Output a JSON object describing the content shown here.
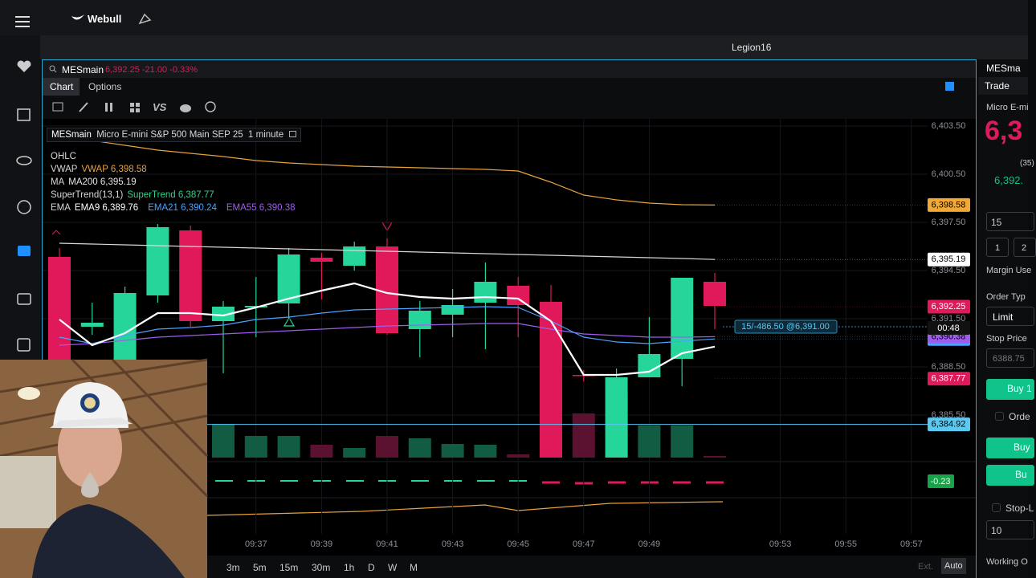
{
  "app": {
    "brand": "Webull",
    "window_title": "Legion16"
  },
  "chart_header": {
    "symbol": "MESmain",
    "price": "6,392.25",
    "change": "-21.00",
    "change_pct": "-0.33%"
  },
  "tabs": [
    "Chart",
    "Options"
  ],
  "legend": {
    "symbol": "MESmain",
    "name": "Micro E-mini S&P 500 Main SEP 25",
    "interval": "1 minute",
    "ohlc": "OHLC",
    "rows": [
      {
        "group": "VWAP",
        "items": [
          {
            "text": "VWAP 6,398.58",
            "color": "#e8a33c"
          }
        ]
      },
      {
        "group": "MA",
        "items": [
          {
            "text": "MA200 6,395.19",
            "color": "#e6e6e6"
          }
        ]
      },
      {
        "group": "SuperTrend(13,1)",
        "items": [
          {
            "text": "SuperTrend 6,387.77",
            "color": "#2bd48a"
          }
        ]
      },
      {
        "group": "EMA",
        "items": [
          {
            "text": "EMA9 6,389.76",
            "color": "#ffffff"
          },
          {
            "text": "EMA21 6,390.24",
            "color": "#4aa3ff"
          },
          {
            "text": "EMA55 6,390.38",
            "color": "#a05cf0"
          }
        ]
      }
    ]
  },
  "chart": {
    "ylim": [
      6378.1,
      6403.95
    ],
    "yticks": [
      {
        "value": 6403.5,
        "label": "6,403.50"
      },
      {
        "value": 6400.5,
        "label": "6,400.50"
      },
      {
        "value": 6397.5,
        "label": "6,397.50"
      },
      {
        "value": 6394.5,
        "label": "6,394.50"
      },
      {
        "value": 6391.5,
        "label": "6,391.50"
      },
      {
        "value": 6388.5,
        "label": "6,388.50"
      },
      {
        "value": 6385.5,
        "label": "6,385.50"
      }
    ],
    "xticks": [
      "09:37",
      "09:39",
      "09:41",
      "09:43",
      "09:45",
      "09:47",
      "09:49",
      "09:53",
      "09:55",
      "09:57"
    ],
    "up_color": "#26d59a",
    "down_color": "#e0195a",
    "candles": [
      {
        "open": 6395.35,
        "high": 6395.9,
        "low": 6388.5,
        "close": 6388.85,
        "volume": 300
      },
      {
        "open": 6391.0,
        "high": 6392.5,
        "low": 6390.5,
        "close": 6391.25,
        "volume": 200
      },
      {
        "open": 6388.9,
        "high": 6393.5,
        "low": 6388.5,
        "close": 6393.1,
        "volume": 350
      },
      {
        "open": 6392.95,
        "high": 6397.4,
        "low": 6392.5,
        "close": 6397.2,
        "volume": 250
      },
      {
        "open": 6397.0,
        "high": 6397.3,
        "low": 6391.0,
        "close": 6391.35,
        "volume": 300
      },
      {
        "open": 6391.35,
        "high": 6392.6,
        "low": 6388.1,
        "close": 6392.25,
        "volume": 420
      },
      {
        "open": 6392.2,
        "high": 6394.1,
        "low": 6390.35,
        "close": 6392.3,
        "volume": 270
      },
      {
        "open": 6392.45,
        "high": 6395.9,
        "low": 6391.5,
        "close": 6395.5,
        "volume": 270
      },
      {
        "open": 6395.3,
        "high": 6395.6,
        "low": 6392.7,
        "close": 6395.05,
        "volume": 160
      },
      {
        "open": 6394.8,
        "high": 6396.3,
        "low": 6394.5,
        "close": 6396.0,
        "volume": 120
      },
      {
        "open": 6396.0,
        "high": 6396.5,
        "low": 6390.5,
        "close": 6390.6,
        "volume": 270
      },
      {
        "open": 6390.85,
        "high": 6392.6,
        "low": 6389.1,
        "close": 6392.0,
        "volume": 240
      },
      {
        "open": 6391.75,
        "high": 6393.35,
        "low": 6390.35,
        "close": 6392.35,
        "volume": 170
      },
      {
        "open": 6392.5,
        "high": 6395.0,
        "low": 6389.6,
        "close": 6393.8,
        "volume": 160
      },
      {
        "open": 6393.55,
        "high": 6394.1,
        "low": 6390.35,
        "close": 6392.35,
        "volume": 40
      },
      {
        "open": 6392.55,
        "high": 6393.6,
        "low": 6382.85,
        "close": 6382.85,
        "volume": 900
      },
      {
        "open": 6388.0,
        "high": 6388.3,
        "low": 6387.6,
        "close": 6387.95,
        "volume": 550
      },
      {
        "open": 6382.85,
        "high": 6388.4,
        "low": 6382.85,
        "close": 6387.85,
        "volume": 800
      },
      {
        "open": 6387.85,
        "high": 6391.6,
        "low": 6387.85,
        "close": 6389.3,
        "volume": 400
      },
      {
        "open": 6389.0,
        "high": 6394.05,
        "low": 6387.3,
        "close": 6394.05,
        "volume": 400
      },
      {
        "open": 6393.8,
        "high": 6394.35,
        "low": 6390.85,
        "close": 6392.3,
        "volume": 20
      }
    ],
    "lines": [
      {
        "name": "VWAP",
        "color": "#e8a33c",
        "width": 1.2,
        "values": [
          6402.85,
          6402.6,
          6402.3,
          6402.0,
          6401.8,
          6401.6,
          6401.35,
          6401.2,
          6401.1,
          6401.0,
          6400.95,
          6400.9,
          6400.85,
          6400.8,
          6400.7,
          6400.0,
          6399.2,
          6398.9,
          6398.7,
          6398.6,
          6398.58
        ]
      },
      {
        "name": "MA200",
        "color": "#d8d8d8",
        "width": 1.2,
        "values": [
          6396.2,
          6396.15,
          6396.1,
          6396.05,
          6396.0,
          6395.95,
          6395.9,
          6395.85,
          6395.8,
          6395.75,
          6395.7,
          6395.65,
          6395.6,
          6395.55,
          6395.5,
          6395.45,
          6395.4,
          6395.35,
          6395.3,
          6395.25,
          6395.19
        ]
      },
      {
        "name": "EMA55",
        "color": "#a05cf0",
        "width": 1.2,
        "values": [
          6389.85,
          6389.95,
          6390.15,
          6390.35,
          6390.45,
          6390.55,
          6390.65,
          6390.75,
          6390.85,
          6390.95,
          6391.05,
          6391.1,
          6391.15,
          6391.2,
          6391.2,
          6390.85,
          6390.55,
          6390.45,
          6390.35,
          6390.35,
          6390.38
        ]
      },
      {
        "name": "EMA21",
        "color": "#4aa3ff",
        "width": 1.2,
        "values": [
          6390.35,
          6389.95,
          6390.45,
          6390.85,
          6390.95,
          6391.1,
          6391.45,
          6391.6,
          6391.85,
          6392.05,
          6392.1,
          6392.15,
          6392.2,
          6392.25,
          6392.2,
          6391.35,
          6390.35,
          6390.05,
          6389.95,
          6390.1,
          6390.24
        ]
      },
      {
        "name": "EMA9",
        "color": "#ffffff",
        "width": 2.2,
        "values": [
          6391.45,
          6389.85,
          6390.6,
          6391.85,
          6391.85,
          6391.7,
          6392.2,
          6392.75,
          6393.25,
          6393.7,
          6393.1,
          6392.85,
          6392.75,
          6392.85,
          6392.75,
          6391.35,
          6388.0,
          6388.0,
          6388.2,
          6389.35,
          6389.76
        ]
      }
    ],
    "price_tags": [
      {
        "label": "6,398.58",
        "value": 6398.58,
        "color": "#f0a935",
        "text_color": "#000000"
      },
      {
        "label": "6,395.19",
        "value": 6395.19,
        "color": "#ffffff",
        "text_color": "#000000"
      },
      {
        "label": "6,390.24",
        "value": 6390.24,
        "color": "#4aa3ff",
        "text_color": "#000000"
      },
      {
        "label": "6,390.38",
        "value": 6390.38,
        "color": "#a05cf0",
        "text_color": "#000000"
      },
      {
        "label": "6,392.25",
        "value": 6392.25,
        "color": "#e0195a",
        "text_color": "#ffffff"
      },
      {
        "label": "6,387.77",
        "value": 6387.77,
        "color": "#e0195a",
        "text_color": "#ffffff"
      },
      {
        "label": "6,384.92",
        "value": 6384.92,
        "color": "#5bc8f0",
        "text_color": "#000000"
      }
    ],
    "countdown": "00:48",
    "alert_line": 6384.92,
    "order": {
      "label": "15/-486.50 @6,391.00",
      "value": 6391.0
    },
    "indicator_tag": "-0.23"
  },
  "timeframes": [
    "3m",
    "5m",
    "15m",
    "30m",
    "1h",
    "D",
    "W",
    "M"
  ],
  "ext": "Ext.",
  "auto": "Auto",
  "trade_panel": {
    "symbol": "MESma",
    "tab": "Trade",
    "name": "Micro E-mi",
    "price": "6,3",
    "bid_size": "(35)",
    "bid": "6,392.",
    "qty": "15",
    "qty_btn1": "1",
    "qty_btn2": "2",
    "margin": "Margin Use",
    "order_type_label": "Order Typ",
    "order_type": "Limit",
    "stop_label": "Stop Price",
    "stop_value": "6388.75",
    "buy1": "Buy 1",
    "order_check": "Orde",
    "buy2": "Buy",
    "buy3": "Bu",
    "stop_loss": "Stop-L",
    "stop_loss_value": "10",
    "working": "Working O"
  }
}
